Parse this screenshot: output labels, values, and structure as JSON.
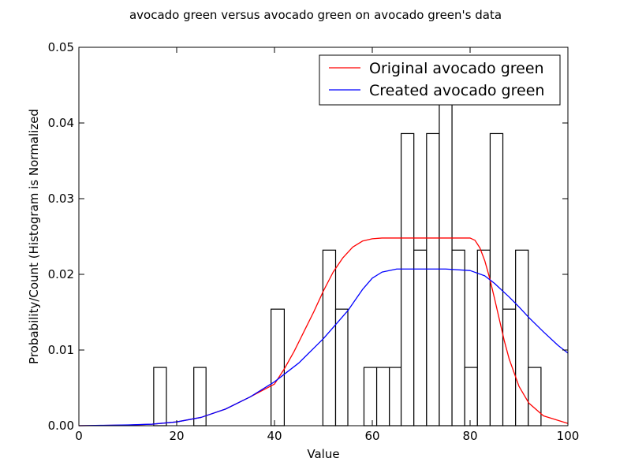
{
  "chart_data": {
    "type": "histogram_with_lines",
    "title": "avocado green versus avocado green on avocado green's data",
    "xlabel": "Value",
    "ylabel": "Probability/Count (Histogram is Normalized",
    "xlim": [
      0,
      100
    ],
    "ylim": [
      0,
      0.05
    ],
    "xticks": [
      0,
      20,
      40,
      60,
      80,
      100
    ],
    "xtick_labels": [
      "0",
      "20",
      "40",
      "60",
      "80",
      "100"
    ],
    "yticks": [
      0.0,
      0.01,
      0.02,
      0.03,
      0.04,
      0.05
    ],
    "ytick_labels": [
      "0.00",
      "0.01",
      "0.02",
      "0.03",
      "0.04",
      "0.05"
    ],
    "grid": false,
    "legend_position": "top-right",
    "histogram": {
      "bins": [
        {
          "x0": 15.3,
          "x1": 17.9,
          "value": 0.0077
        },
        {
          "x0": 23.5,
          "x1": 26.0,
          "value": 0.0077
        },
        {
          "x0": 39.3,
          "x1": 42.0,
          "value": 0.0154
        },
        {
          "x0": 49.9,
          "x1": 52.5,
          "value": 0.0232
        },
        {
          "x0": 52.5,
          "x1": 55.0,
          "value": 0.0154
        },
        {
          "x0": 58.3,
          "x1": 60.9,
          "value": 0.0077
        },
        {
          "x0": 60.9,
          "x1": 63.5,
          "value": 0.0077
        },
        {
          "x0": 63.5,
          "x1": 65.9,
          "value": 0.0077
        },
        {
          "x0": 65.9,
          "x1": 68.5,
          "value": 0.0386
        },
        {
          "x0": 68.5,
          "x1": 71.1,
          "value": 0.0232
        },
        {
          "x0": 71.1,
          "x1": 73.7,
          "value": 0.0386
        },
        {
          "x0": 73.7,
          "x1": 76.3,
          "value": 0.0425
        },
        {
          "x0": 76.3,
          "x1": 78.9,
          "value": 0.0232
        },
        {
          "x0": 78.9,
          "x1": 81.5,
          "value": 0.0077
        },
        {
          "x0": 81.5,
          "x1": 84.1,
          "value": 0.0232
        },
        {
          "x0": 84.1,
          "x1": 86.7,
          "value": 0.0386
        },
        {
          "x0": 86.7,
          "x1": 89.3,
          "value": 0.0154
        },
        {
          "x0": 89.3,
          "x1": 91.9,
          "value": 0.0232
        },
        {
          "x0": 91.9,
          "x1": 94.5,
          "value": 0.0077
        }
      ]
    },
    "series": [
      {
        "name": "Original avocado green",
        "color": "#ff0000",
        "x": [
          0,
          5,
          10,
          15,
          20,
          25,
          30,
          35,
          40,
          42,
          44,
          46,
          48,
          50,
          52,
          54,
          56,
          58,
          60,
          62,
          64,
          66,
          70,
          75,
          80,
          81,
          82,
          83,
          84,
          85,
          86,
          87,
          88,
          90,
          92,
          95,
          100
        ],
        "y": [
          0.0,
          3e-05,
          8e-05,
          0.0002,
          0.0005,
          0.0011,
          0.0022,
          0.0038,
          0.0055,
          0.0075,
          0.0098,
          0.0124,
          0.015,
          0.0178,
          0.0203,
          0.0222,
          0.0236,
          0.0244,
          0.0247,
          0.0248,
          0.0248,
          0.0248,
          0.0248,
          0.0248,
          0.0248,
          0.0245,
          0.0235,
          0.0218,
          0.0195,
          0.0168,
          0.014,
          0.0112,
          0.0088,
          0.0052,
          0.003,
          0.0013,
          0.0003
        ]
      },
      {
        "name": "Created avocado green",
        "color": "#0000ff",
        "x": [
          0,
          5,
          10,
          15,
          20,
          25,
          30,
          35,
          40,
          45,
          50,
          55,
          58,
          60,
          62,
          65,
          70,
          75,
          80,
          83,
          85,
          88,
          90,
          92,
          95,
          98,
          100
        ],
        "y": [
          0.0,
          5e-05,
          0.0001,
          0.0002,
          0.0005,
          0.0011,
          0.0022,
          0.0038,
          0.0058,
          0.0083,
          0.0115,
          0.0152,
          0.018,
          0.0195,
          0.0203,
          0.0207,
          0.0207,
          0.0207,
          0.0205,
          0.0198,
          0.0188,
          0.017,
          0.0157,
          0.0143,
          0.0124,
          0.0106,
          0.0096
        ]
      }
    ]
  }
}
